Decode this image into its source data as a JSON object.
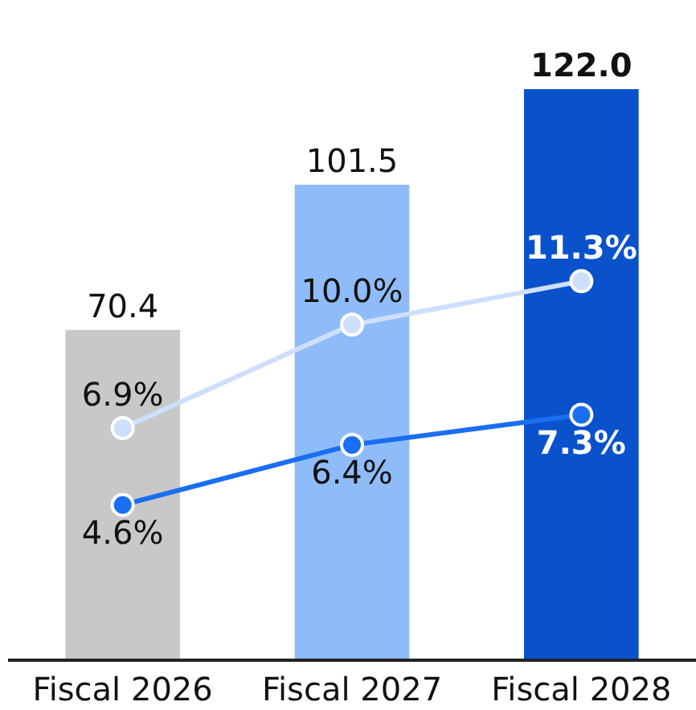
{
  "chart_data": {
    "type": "bar",
    "categories": [
      "Fiscal 2026",
      "Fiscal 2027",
      "Fiscal 2028"
    ],
    "tick_labels": "x",
    "grid": false,
    "legend": false,
    "marker": "circle",
    "line_style": "solid",
    "series": [
      {
        "colors": [
          "#c8c8c8",
          "#8fbcf9",
          "#0a52cc"
        ],
        "values": [
          70.4,
          101.5,
          122.0
        ],
        "value_labels": [
          "70.4",
          "101.5",
          "122.0"
        ]
      },
      {
        "type": "line",
        "axis": "y2",
        "color": "#cddffb",
        "values": [
          6.9,
          10.0,
          11.3
        ],
        "value_labels": [
          "6.9%",
          "10.0%",
          "11.3%"
        ]
      },
      {
        "type": "line",
        "axis": "y2",
        "color": "#1a6ef0",
        "values": [
          4.6,
          6.4,
          7.3
        ],
        "value_labels": [
          "4.6%",
          "6.4%",
          "7.3%"
        ]
      }
    ]
  }
}
